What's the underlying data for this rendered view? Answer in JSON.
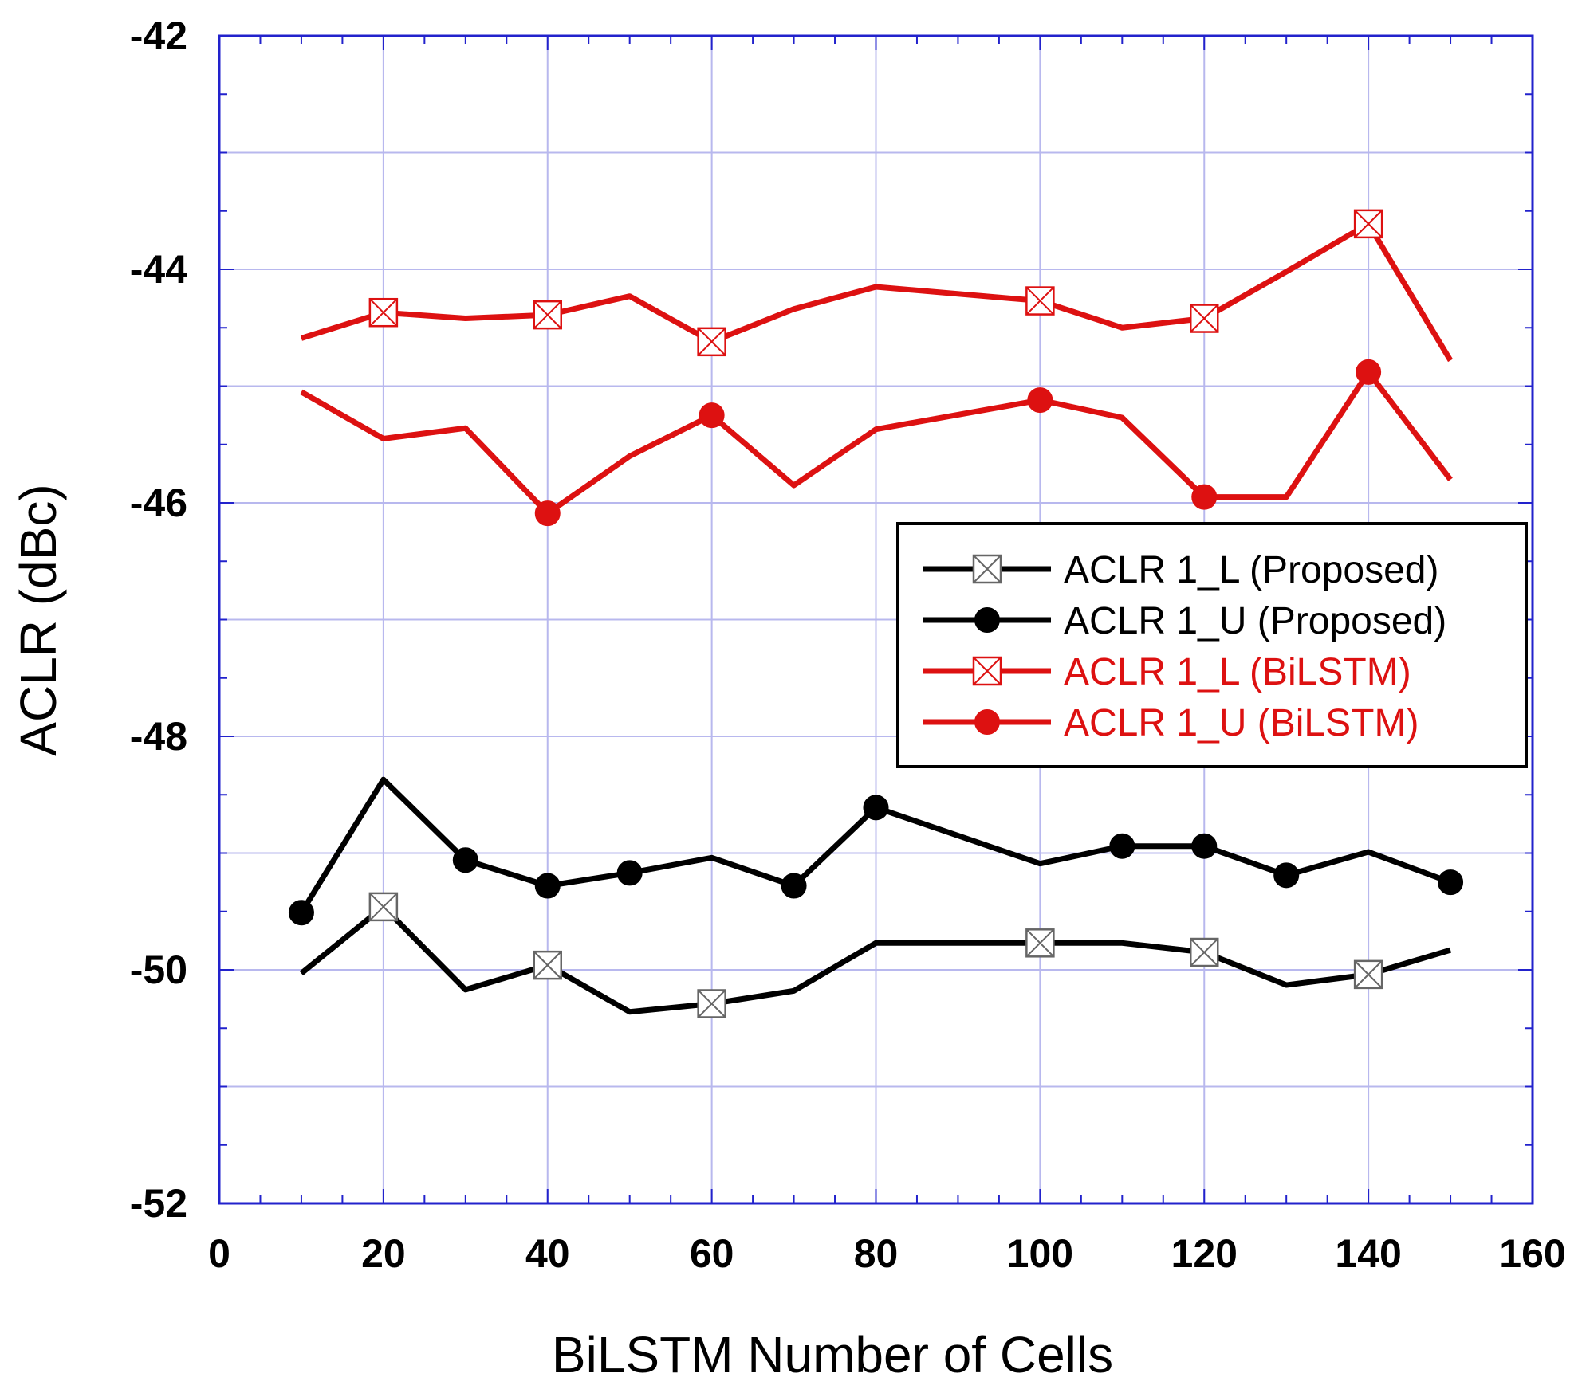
{
  "chart_data": {
    "type": "line",
    "title": "",
    "xlabel": "BiLSTM Number of Cells",
    "ylabel": "ACLR (dBc)",
    "xlim": [
      0,
      160
    ],
    "ylim": [
      -52,
      -42
    ],
    "x_ticks": [
      0,
      20,
      40,
      60,
      80,
      100,
      120,
      140,
      160
    ],
    "y_ticks": [
      -52,
      -50,
      -48,
      -46,
      -44,
      -42
    ],
    "x_tick_labels": [
      "0",
      "20",
      "40",
      "60",
      "80",
      "100",
      "120",
      "140",
      "160"
    ],
    "y_tick_labels": [
      "-52",
      "-50",
      "-48",
      "-46",
      "-44",
      "-42"
    ],
    "grid": true,
    "legend_position": "right-middle",
    "x": [
      10,
      20,
      30,
      40,
      50,
      60,
      70,
      80,
      100,
      110,
      120,
      130,
      140,
      150
    ],
    "series": [
      {
        "name": "ACLR 1_L (Proposed)",
        "color": "#000000",
        "marker": "boxed-x",
        "marker_x": [
          20,
          40,
          60,
          100,
          120,
          140
        ],
        "values": [
          -50.03,
          -49.46,
          -50.17,
          -49.96,
          -50.36,
          -50.29,
          -50.18,
          -49.77,
          -49.77,
          -49.77,
          -49.85,
          -50.13,
          -50.04,
          -49.83
        ]
      },
      {
        "name": "ACLR 1_U (Proposed)",
        "color": "#000000",
        "marker": "filled-circle",
        "marker_x": [
          10,
          30,
          40,
          50,
          70,
          80,
          110,
          120,
          130,
          150
        ],
        "values": [
          -49.51,
          -48.37,
          -49.06,
          -49.28,
          -49.17,
          -49.04,
          -49.28,
          -48.61,
          -49.09,
          -48.94,
          -48.94,
          -49.19,
          -48.99,
          -49.25
        ]
      },
      {
        "name": "ACLR 1_L (BiLSTM)",
        "color": "#dd1111",
        "marker": "boxed-x",
        "marker_x": [
          20,
          40,
          60,
          100,
          120,
          140
        ],
        "values": [
          -44.59,
          -44.37,
          -44.42,
          -44.39,
          -44.23,
          -44.62,
          -44.34,
          -44.15,
          -44.27,
          -44.5,
          -44.42,
          -44.02,
          -43.61,
          -44.78
        ]
      },
      {
        "name": "ACLR 1_U (BiLSTM)",
        "color": "#dd1111",
        "marker": "filled-circle",
        "marker_x": [
          40,
          60,
          100,
          120,
          140
        ],
        "values": [
          -45.05,
          -45.45,
          -45.36,
          -46.09,
          -45.6,
          -45.25,
          -45.85,
          -45.37,
          -45.12,
          -45.27,
          -45.95,
          -45.95,
          -44.88,
          -45.8
        ]
      }
    ]
  }
}
